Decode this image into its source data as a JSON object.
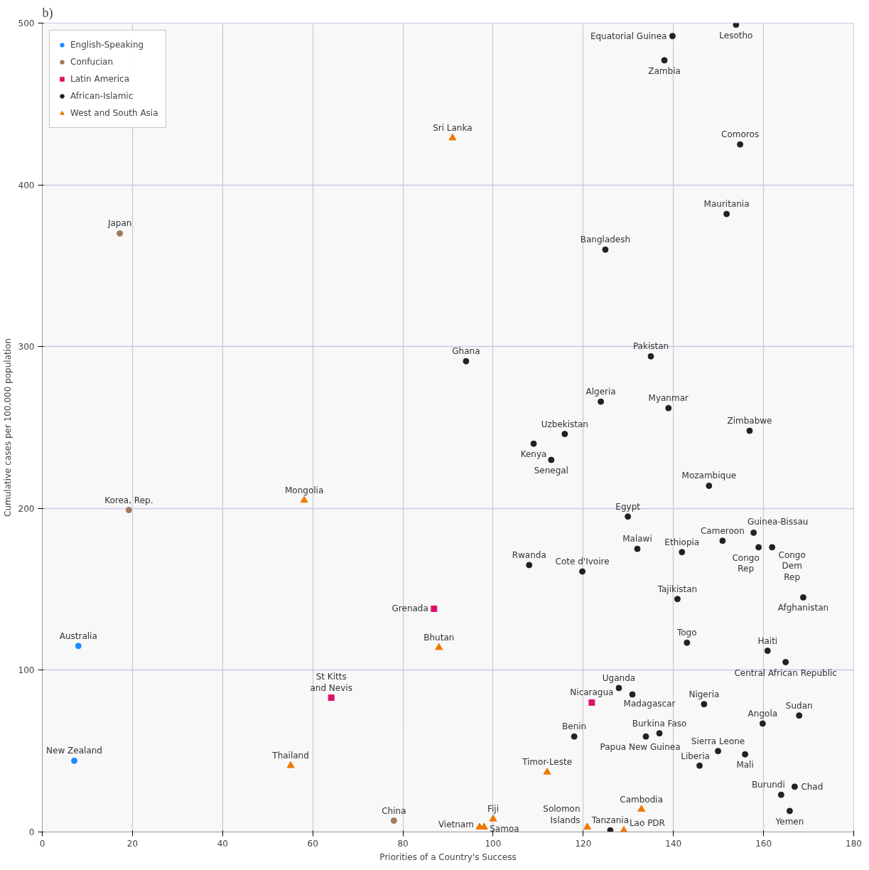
{
  "chart_data": {
    "type": "scatter",
    "title": "b)",
    "xlabel": "Priorities of a Country's Success",
    "ylabel": "Cumulative cases per 100,000 population",
    "xlim": [
      0,
      180
    ],
    "ylim": [
      0,
      500
    ],
    "xticks": [
      0,
      20,
      40,
      60,
      80,
      100,
      120,
      140,
      160,
      180
    ],
    "yticks": [
      0,
      100,
      200,
      300,
      400,
      500
    ],
    "grid": true,
    "legend": "top left",
    "series": [
      {
        "name": "English-Speaking",
        "color": "#1a8cff",
        "marker": "circle",
        "x": [
          8.0,
          7.1
        ],
        "values": [
          115,
          44
        ]
      },
      {
        "name": "Confucian",
        "color": "#a07a5a",
        "marker": "circle",
        "x": [
          17.2,
          19.2,
          78.0
        ],
        "values": [
          370,
          199,
          7
        ]
      },
      {
        "name": "Latin America",
        "color": "#e0106a",
        "marker": "square",
        "x": [
          86.9,
          64.1,
          121.9
        ],
        "values": [
          138,
          83,
          80
        ]
      },
      {
        "name": "African-Islamic",
        "color": "#222222",
        "marker": "circle",
        "x": [
          153.9,
          139.8,
          138.0,
          154.8,
          151.8,
          124.9,
          94.0,
          135.0,
          123.9,
          138.9,
          115.9,
          156.9,
          109.0,
          112.9,
          147.9,
          129.9,
          132.0,
          141.9,
          150.9,
          157.8,
          158.9,
          161.9,
          108.0,
          119.8,
          140.9,
          168.8,
          143.0,
          160.9,
          164.9,
          127.9,
          130.9,
          146.8,
          159.8,
          167.9,
          118.0,
          136.9,
          133.9,
          149.9,
          145.8,
          155.9,
          163.9,
          166.9,
          165.8,
          126.0
        ],
        "values": [
          499,
          492,
          477,
          425,
          382,
          360,
          291,
          294,
          266,
          262,
          246,
          248,
          240,
          230,
          214,
          195,
          175,
          173,
          180,
          185,
          176,
          176,
          165,
          161,
          144,
          145,
          117,
          112,
          105,
          89,
          85,
          79,
          67,
          72,
          59,
          61,
          59,
          50,
          41,
          48,
          23,
          28,
          13,
          1
        ]
      },
      {
        "name": "West and South Asia",
        "color": "#f07800",
        "marker": "triangle",
        "x": [
          91.0,
          58.1,
          88.0,
          55.1,
          112.0,
          132.9,
          100.0,
          97.0,
          98.0,
          120.9,
          129.0
        ],
        "values": [
          429,
          205,
          114,
          41,
          37,
          14,
          8,
          3,
          3,
          3,
          1
        ]
      }
    ],
    "annotations": [
      {
        "text": "Australia",
        "x": 8.0,
        "y": 115
      },
      {
        "text": "New Zealand",
        "x": 7.1,
        "y": 44
      },
      {
        "text": "Japan",
        "x": 17.2,
        "y": 370
      },
      {
        "text": "Korea, Rep.",
        "x": 19.2,
        "y": 199
      },
      {
        "text": "China",
        "x": 78.0,
        "y": 7
      },
      {
        "text": "Grenada",
        "x": 86.9,
        "y": 138
      },
      {
        "text": "St Kitts\nand Nevis",
        "x": 64.1,
        "y": 83
      },
      {
        "text": "Nicaragua",
        "x": 121.9,
        "y": 80
      },
      {
        "text": "Sri Lanka",
        "x": 91.0,
        "y": 429
      },
      {
        "text": "Mongolia",
        "x": 58.1,
        "y": 205
      },
      {
        "text": "Bhutan",
        "x": 88.0,
        "y": 114
      },
      {
        "text": "Thailand",
        "x": 55.1,
        "y": 41
      },
      {
        "text": "Timor-Leste",
        "x": 112.0,
        "y": 37
      },
      {
        "text": "Cambodia",
        "x": 132.9,
        "y": 14
      },
      {
        "text": "Fiji",
        "x": 100.0,
        "y": 8
      },
      {
        "text": "Vietnam",
        "x": 97.0,
        "y": 3
      },
      {
        "text": "Samoa",
        "x": 98.0,
        "y": 3
      },
      {
        "text": "Solomon\nIslands",
        "x": 120.9,
        "y": 3
      },
      {
        "text": "Lao PDR",
        "x": 129.0,
        "y": 1
      },
      {
        "text": "Lesotho",
        "x": 153.9,
        "y": 499
      },
      {
        "text": "Equatorial Guinea",
        "x": 139.8,
        "y": 492
      },
      {
        "text": "Zambia",
        "x": 138.0,
        "y": 477
      },
      {
        "text": "Comoros",
        "x": 154.8,
        "y": 425
      },
      {
        "text": "Mauritania",
        "x": 151.8,
        "y": 382
      },
      {
        "text": "Bangladesh",
        "x": 124.9,
        "y": 360
      },
      {
        "text": "Ghana",
        "x": 94.0,
        "y": 291
      },
      {
        "text": "Pakistan",
        "x": 135.0,
        "y": 294
      },
      {
        "text": "Algeria",
        "x": 123.9,
        "y": 266
      },
      {
        "text": "Myanmar",
        "x": 138.9,
        "y": 262
      },
      {
        "text": "Uzbekistan",
        "x": 115.9,
        "y": 246
      },
      {
        "text": "Zimbabwe",
        "x": 156.9,
        "y": 248
      },
      {
        "text": "Kenya",
        "x": 109.0,
        "y": 240
      },
      {
        "text": "Senegal",
        "x": 112.9,
        "y": 230
      },
      {
        "text": "Mozambique",
        "x": 147.9,
        "y": 214
      },
      {
        "text": "Egypt",
        "x": 129.9,
        "y": 195
      },
      {
        "text": "Malawi",
        "x": 132.0,
        "y": 175
      },
      {
        "text": "Ethiopia",
        "x": 141.9,
        "y": 173
      },
      {
        "text": "Cameroon",
        "x": 150.9,
        "y": 180
      },
      {
        "text": "Guinea-Bissau",
        "x": 157.8,
        "y": 185
      },
      {
        "text": "Congo\nRep",
        "x": 158.9,
        "y": 176
      },
      {
        "text": "Congo\nDem\nRep",
        "x": 161.9,
        "y": 176
      },
      {
        "text": "Rwanda",
        "x": 108.0,
        "y": 165
      },
      {
        "text": "Cote d'Ivoire",
        "x": 119.8,
        "y": 161
      },
      {
        "text": "Tajikistan",
        "x": 140.9,
        "y": 144
      },
      {
        "text": "Afghanistan",
        "x": 168.8,
        "y": 145
      },
      {
        "text": "Togo",
        "x": 143.0,
        "y": 117
      },
      {
        "text": "Haiti",
        "x": 160.9,
        "y": 112
      },
      {
        "text": "Central African Republic",
        "x": 164.9,
        "y": 105
      },
      {
        "text": "Uganda",
        "x": 127.9,
        "y": 89
      },
      {
        "text": "Madagascar",
        "x": 130.9,
        "y": 85
      },
      {
        "text": "Nigeria",
        "x": 146.8,
        "y": 79
      },
      {
        "text": "Angola",
        "x": 159.8,
        "y": 67
      },
      {
        "text": "Sudan",
        "x": 167.9,
        "y": 72
      },
      {
        "text": "Benin",
        "x": 118.0,
        "y": 59
      },
      {
        "text": "Burkina Faso",
        "x": 136.9,
        "y": 61
      },
      {
        "text": "Papua New Guinea",
        "x": 133.9,
        "y": 59
      },
      {
        "text": "Sierra Leone",
        "x": 149.9,
        "y": 50
      },
      {
        "text": "Liberia",
        "x": 145.8,
        "y": 41
      },
      {
        "text": "Mali",
        "x": 155.9,
        "y": 48
      },
      {
        "text": "Burundi",
        "x": 163.9,
        "y": 23
      },
      {
        "text": "Chad",
        "x": 166.9,
        "y": 28
      },
      {
        "text": "Yemen",
        "x": 165.8,
        "y": 13
      },
      {
        "text": "Tanzania",
        "x": 126.0,
        "y": 1
      }
    ]
  }
}
